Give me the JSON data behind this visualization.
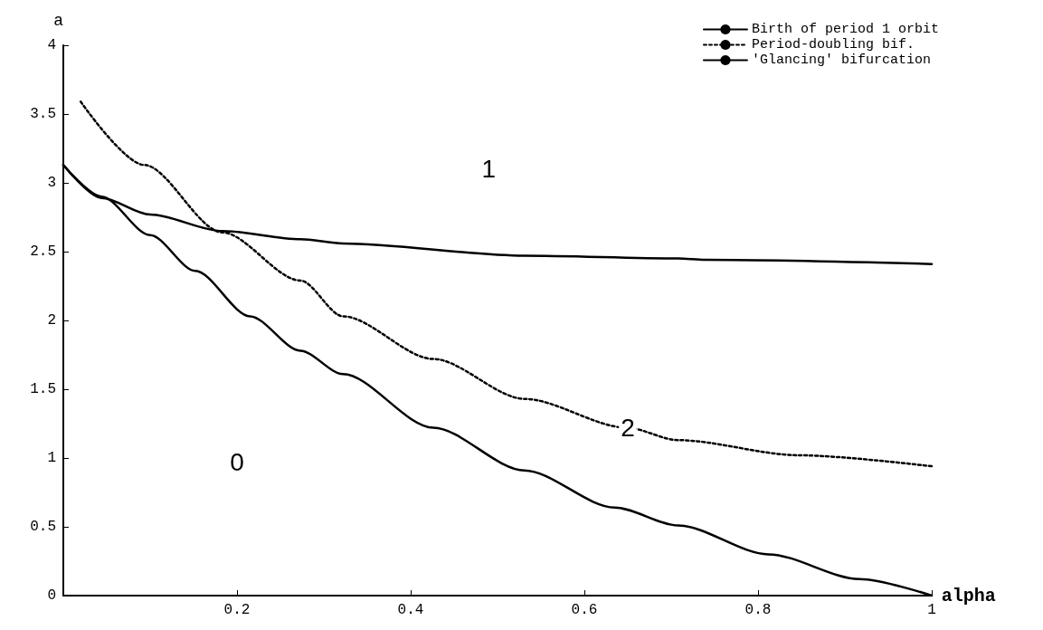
{
  "chart_data": {
    "type": "line",
    "xlabel": "alpha",
    "ylabel": "a",
    "xlim": [
      0,
      1
    ],
    "xticks": [
      0.2,
      0.4,
      0.6,
      0.8,
      1
    ],
    "ylim": [
      0,
      4
    ],
    "yticks": [
      0,
      0.5,
      1,
      1.5,
      2,
      2.5,
      3,
      3.5,
      4
    ],
    "grid": false,
    "legend": "top right",
    "marker": "none",
    "series": [
      {
        "name": "Birth of period 1 orbit",
        "color": "#000000",
        "line_style": "solid",
        "x": [
          0,
          0.044,
          0.1,
          0.152,
          0.215,
          0.273,
          0.322,
          0.426,
          0.531,
          0.635,
          0.708,
          0.812,
          0.917,
          1
        ],
        "values": [
          3.13,
          2.9,
          2.62,
          2.36,
          2.03,
          1.78,
          1.61,
          1.22,
          0.91,
          0.64,
          0.51,
          0.3,
          0.12,
          0
        ]
      },
      {
        "name": "Period-doubling bif.",
        "color": "#000000",
        "line_style": "dotted",
        "x": [
          0.02,
          0.093,
          0.183,
          0.273,
          0.322,
          0.426,
          0.531,
          0.649,
          0.708,
          0.847,
          1
        ],
        "values": [
          3.59,
          3.13,
          2.64,
          2.29,
          2.03,
          1.72,
          1.43,
          1.22,
          1.13,
          1.02,
          0.94
        ]
      },
      {
        "name": "'Glancing' bifurcation",
        "color": "#000000",
        "line_style": "solid",
        "x": [
          0,
          0.044,
          0.1,
          0.183,
          0.273,
          0.322,
          0.531,
          0.708,
          0.739,
          1
        ],
        "values": [
          3.13,
          2.89,
          2.77,
          2.65,
          2.59,
          2.56,
          2.47,
          2.45,
          2.44,
          2.41
        ]
      }
    ],
    "annotations": [
      {
        "text": "1",
        "x": 0.49,
        "y": 3.1
      },
      {
        "text": "2",
        "x": 0.65,
        "y": 1.22
      },
      {
        "text": "0",
        "x": 0.2,
        "y": 0.97
      }
    ]
  }
}
